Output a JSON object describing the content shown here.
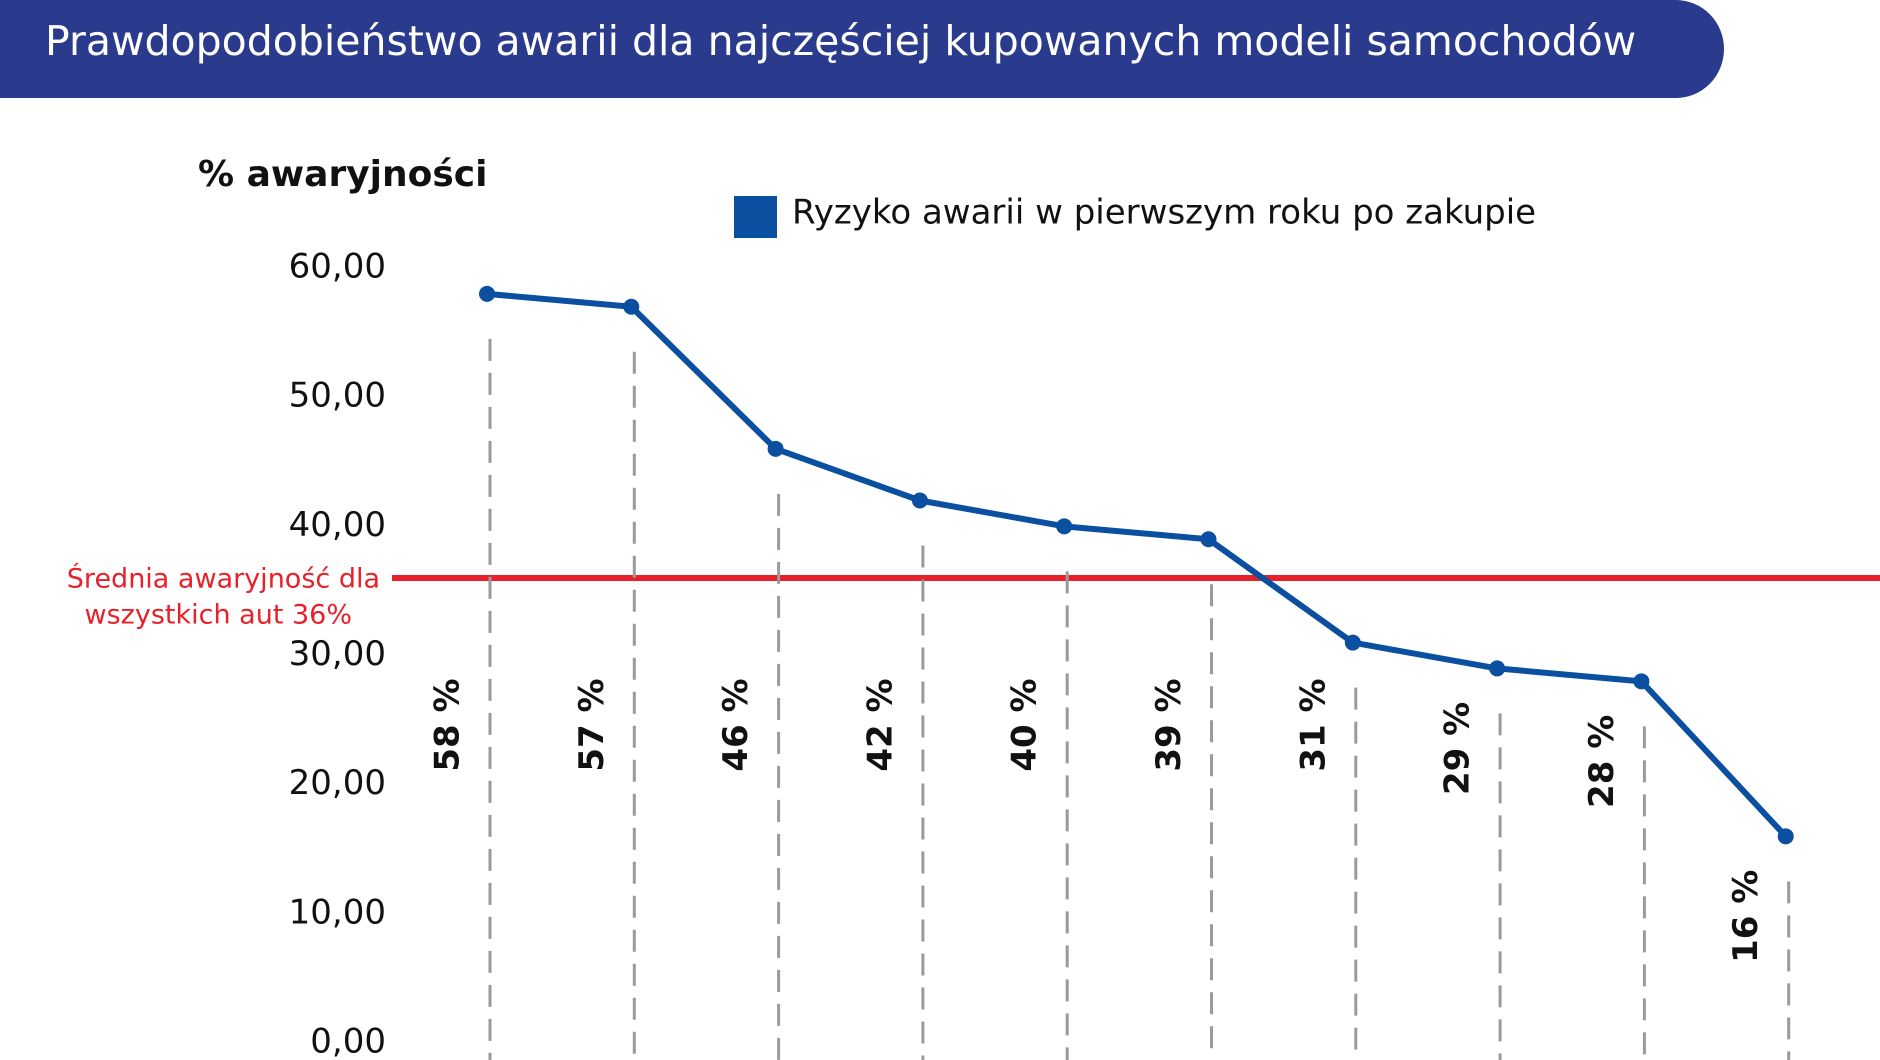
{
  "chart_data": {
    "type": "line",
    "title": "Prawdopodobieństwo awarii dla najczęściej kupowanych modeli samochodów",
    "y_axis_label": "% awaryjności",
    "categories": [
      null,
      null,
      null,
      null,
      null,
      null,
      null,
      null,
      null,
      null
    ],
    "series": [
      {
        "name": "Ryzyko awarii w pierwszym roku po zakupie",
        "color": "#0b4fa0",
        "values": [
          58,
          57,
          46,
          42,
          40,
          39,
          31,
          29,
          28,
          16
        ],
        "value_labels": [
          "58 %",
          "57 %",
          "46 %",
          "42 %",
          "40 %",
          "39 %",
          "31 %",
          "29 %",
          "28 %",
          "16 %"
        ]
      }
    ],
    "ylim": [
      0,
      60
    ],
    "yticks": [
      {
        "value": 0,
        "label": "0,00"
      },
      {
        "value": 10,
        "label": "10,00"
      },
      {
        "value": 20,
        "label": "20,00"
      },
      {
        "value": 30,
        "label": "30,00"
      },
      {
        "value": 40,
        "label": "40,00"
      },
      {
        "value": 50,
        "label": "50,00"
      },
      {
        "value": 60,
        "label": "60,00"
      }
    ],
    "reference_line": {
      "value": 36,
      "color": "#e8202a",
      "label_lines": [
        "Średnia awaryjność dla",
        "wszystkich aut 36%"
      ]
    },
    "grid": false
  }
}
